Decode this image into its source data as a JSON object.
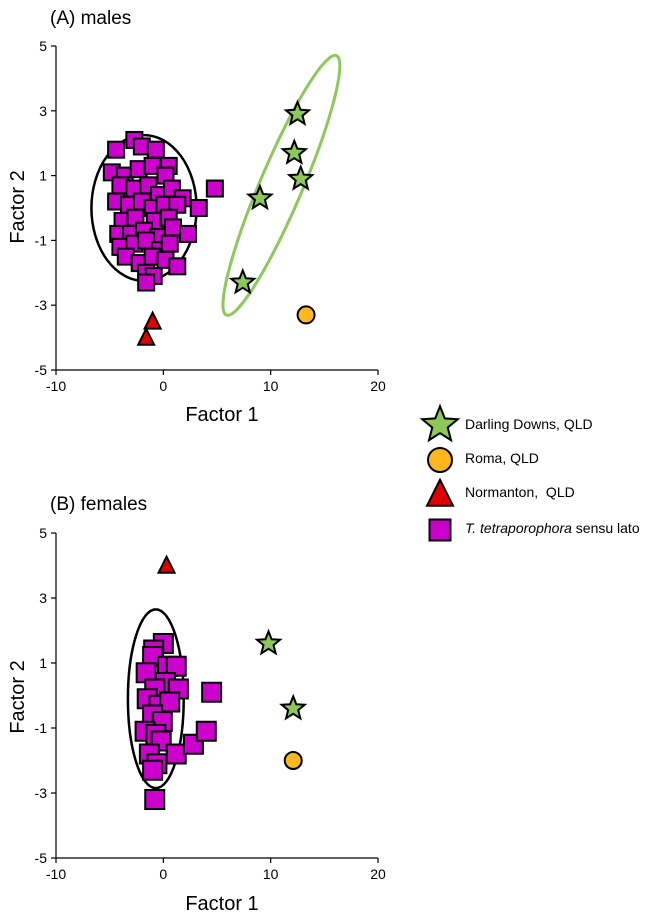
{
  "chart_data": [
    {
      "type": "scatter",
      "panel": "A",
      "title": "(A) males",
      "xlabel": "Factor 1",
      "ylabel": "Factor 2",
      "xlim": [
        -10,
        20
      ],
      "ylim": [
        -5,
        5
      ],
      "xticks": [
        -10,
        0,
        10,
        20
      ],
      "yticks": [
        -5,
        -3,
        -1,
        1,
        3,
        5
      ],
      "series": [
        {
          "name": "T. tetraporophora sensu lato",
          "marker": "square",
          "color": "#CC00CC",
          "points": [
            [
              -2.7,
              2.1
            ],
            [
              -4.4,
              1.8
            ],
            [
              -2.0,
              1.9
            ],
            [
              -0.7,
              1.8
            ],
            [
              0.5,
              1.3
            ],
            [
              -4.8,
              1.1
            ],
            [
              -3.6,
              1.0
            ],
            [
              -2.3,
              1.2
            ],
            [
              -1.0,
              1.3
            ],
            [
              0.2,
              1.0
            ],
            [
              -4.0,
              0.7
            ],
            [
              -2.7,
              0.6
            ],
            [
              -1.4,
              0.7
            ],
            [
              -0.4,
              0.4
            ],
            [
              0.8,
              0.6
            ],
            [
              1.8,
              0.3
            ],
            [
              4.8,
              0.6
            ],
            [
              3.3,
              0.0
            ],
            [
              -4.4,
              0.2
            ],
            [
              -3.2,
              0.1
            ],
            [
              -2.0,
              0.2
            ],
            [
              -1.0,
              0.0
            ],
            [
              0.1,
              0.1
            ],
            [
              1.3,
              0.1
            ],
            [
              -3.8,
              -0.4
            ],
            [
              -2.6,
              -0.3
            ],
            [
              -0.8,
              -0.4
            ],
            [
              0.5,
              -0.3
            ],
            [
              -4.2,
              -0.8
            ],
            [
              -3.0,
              -0.8
            ],
            [
              -1.8,
              -0.7
            ],
            [
              -0.5,
              -0.9
            ],
            [
              0.9,
              -0.6
            ],
            [
              2.3,
              -0.8
            ],
            [
              -4.0,
              -1.2
            ],
            [
              -2.7,
              -1.1
            ],
            [
              -1.6,
              -1.0
            ],
            [
              -0.3,
              -1.3
            ],
            [
              0.6,
              -1.1
            ],
            [
              -3.5,
              -1.5
            ],
            [
              -2.2,
              -1.7
            ],
            [
              -1.0,
              -1.5
            ],
            [
              0.2,
              -1.6
            ],
            [
              1.3,
              -1.8
            ],
            [
              -1.6,
              -2.0
            ],
            [
              -0.9,
              -2.1
            ],
            [
              -1.6,
              -2.3
            ]
          ]
        },
        {
          "name": "Darling Downs, QLD",
          "marker": "star",
          "color": "#8CC85A",
          "points": [
            [
              12.5,
              2.9
            ],
            [
              12.2,
              1.7
            ],
            [
              12.8,
              0.9
            ],
            [
              9.0,
              0.3
            ],
            [
              7.4,
              -2.3
            ]
          ]
        },
        {
          "name": "Roma, QLD",
          "marker": "circle",
          "color": "#FFB81C",
          "points": [
            [
              13.3,
              -3.3
            ]
          ]
        },
        {
          "name": "Normanton, QLD",
          "marker": "triangle",
          "color": "#E00000",
          "points": [
            [
              -1.0,
              -3.5
            ],
            [
              -1.6,
              -4.0
            ]
          ]
        }
      ],
      "ellipses": [
        {
          "group": "T. tetraporophora sensu lato",
          "color": "#000000",
          "cx": -1.8,
          "cy": 0.0,
          "rx": 4.9,
          "ry": 2.25,
          "angle": 0
        },
        {
          "group": "Darling Downs, QLD",
          "color": "#8CC85A",
          "cx": 11.0,
          "cy": 0.7,
          "rx": 3.6,
          "ry": 5.8,
          "angle": 23
        }
      ]
    },
    {
      "type": "scatter",
      "panel": "B",
      "title": "(B) females",
      "xlabel": "Factor 1",
      "ylabel": "Factor 2",
      "xlim": [
        -10,
        20
      ],
      "ylim": [
        -5,
        5
      ],
      "xticks": [
        -10,
        0,
        10,
        20
      ],
      "yticks": [
        -5,
        -3,
        -1,
        1,
        3,
        5
      ],
      "series": [
        {
          "name": "T. tetraporophora sensu lato",
          "marker": "square",
          "color": "#CC00CC",
          "points": [
            [
              0.0,
              1.6
            ],
            [
              -0.9,
              1.4
            ],
            [
              -1.0,
              1.2
            ],
            [
              0.4,
              0.9
            ],
            [
              1.2,
              0.9
            ],
            [
              -1.6,
              0.7
            ],
            [
              0.2,
              0.4
            ],
            [
              -0.8,
              0.2
            ],
            [
              1.4,
              0.2
            ],
            [
              4.5,
              0.1
            ],
            [
              -1.5,
              -0.1
            ],
            [
              -0.4,
              -0.3
            ],
            [
              0.6,
              -0.2
            ],
            [
              -1.0,
              -0.6
            ],
            [
              -0.1,
              -0.8
            ],
            [
              -1.7,
              -1.1
            ],
            [
              -0.7,
              -1.2
            ],
            [
              -0.2,
              -1.4
            ],
            [
              1.2,
              -1.8
            ],
            [
              2.8,
              -1.5
            ],
            [
              4.0,
              -1.1
            ],
            [
              -1.3,
              -1.8
            ],
            [
              -0.6,
              -2.1
            ],
            [
              -1.0,
              -2.3
            ],
            [
              -0.8,
              -3.2
            ]
          ]
        },
        {
          "name": "Darling Downs, QLD",
          "marker": "star",
          "color": "#8CC85A",
          "points": [
            [
              9.8,
              1.6
            ],
            [
              12.1,
              -0.4
            ]
          ]
        },
        {
          "name": "Roma, QLD",
          "marker": "circle",
          "color": "#FFB81C",
          "points": [
            [
              12.1,
              -2.0
            ]
          ]
        },
        {
          "name": "Normanton, QLD",
          "marker": "triangle",
          "color": "#E00000",
          "points": [
            [
              0.3,
              4.0
            ]
          ]
        }
      ],
      "ellipses": [
        {
          "group": "T. tetraporophora sensu lato",
          "color": "#000000",
          "cx": -0.7,
          "cy": -0.1,
          "rx": 2.6,
          "ry": 2.75,
          "angle": 0
        }
      ]
    }
  ],
  "legend": {
    "placement": "right",
    "items": [
      {
        "marker": "star",
        "color": "#8CC85A",
        "label": "Darling Downs, QLD"
      },
      {
        "marker": "circle",
        "color": "#FFB81C",
        "label": "Roma, QLD"
      },
      {
        "marker": "triangle",
        "color": "#E00000",
        "label": "Normanton,  QLD"
      },
      {
        "marker": "square",
        "color": "#CC00CC",
        "label_italic": "T. tetraporophora",
        "label_rest": " sensu lato"
      }
    ]
  }
}
